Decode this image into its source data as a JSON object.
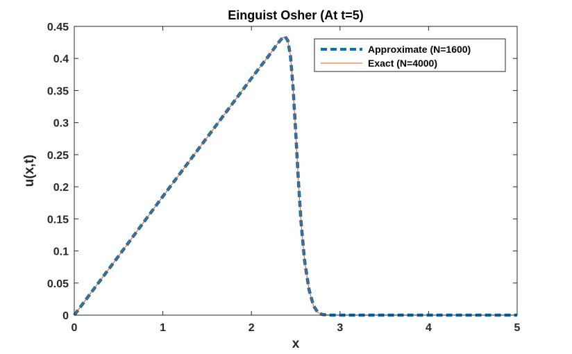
{
  "chart_data": {
    "type": "line",
    "title": "Einguist Osher (At t=5)",
    "xlabel": "x",
    "ylabel": "u(x,t)",
    "xlim": [
      0,
      5
    ],
    "ylim": [
      0,
      0.45
    ],
    "grid": false,
    "legend_position": "top-right",
    "x_ticks": [
      0,
      1,
      2,
      3,
      4,
      5
    ],
    "x_tick_labels": [
      "0",
      "1",
      "2",
      "3",
      "4",
      "5"
    ],
    "y_ticks": [
      0,
      0.05,
      0.1,
      0.15,
      0.2,
      0.25,
      0.3,
      0.35,
      0.4,
      0.45
    ],
    "y_tick_labels": [
      "0",
      "0.05",
      "0.1",
      "0.15",
      "0.2",
      "0.25",
      "0.3",
      "0.35",
      "0.4",
      "0.45"
    ],
    "series": [
      {
        "name": "Approximate (N=1600)",
        "color": "#0072BD",
        "style": "dashed",
        "x": [
          0,
          0.5,
          1.0,
          1.5,
          2.0,
          2.2,
          2.3,
          2.35,
          2.38,
          2.41,
          2.44,
          2.47,
          2.5,
          2.53,
          2.56,
          2.6,
          2.65,
          2.7,
          2.75,
          2.8,
          2.9,
          3.0,
          4.0,
          5.0
        ],
        "y": [
          0,
          0.092,
          0.185,
          0.277,
          0.369,
          0.405,
          0.424,
          0.432,
          0.434,
          0.428,
          0.405,
          0.355,
          0.285,
          0.21,
          0.145,
          0.085,
          0.04,
          0.015,
          0.004,
          0.001,
          0,
          0,
          0,
          0
        ]
      },
      {
        "name": "Exact (N=4000)",
        "color": "#D95319",
        "style": "solid",
        "x": [
          0,
          0.5,
          1.0,
          1.5,
          2.0,
          2.2,
          2.3,
          2.35,
          2.38,
          2.41,
          2.44,
          2.47,
          2.5,
          2.53,
          2.56,
          2.6,
          2.65,
          2.7,
          2.75,
          2.8,
          2.9,
          3.0,
          4.0,
          5.0
        ],
        "y": [
          0,
          0.092,
          0.185,
          0.277,
          0.369,
          0.405,
          0.424,
          0.432,
          0.434,
          0.428,
          0.405,
          0.355,
          0.285,
          0.21,
          0.145,
          0.085,
          0.04,
          0.015,
          0.004,
          0.001,
          0,
          0,
          0,
          0
        ]
      }
    ]
  }
}
